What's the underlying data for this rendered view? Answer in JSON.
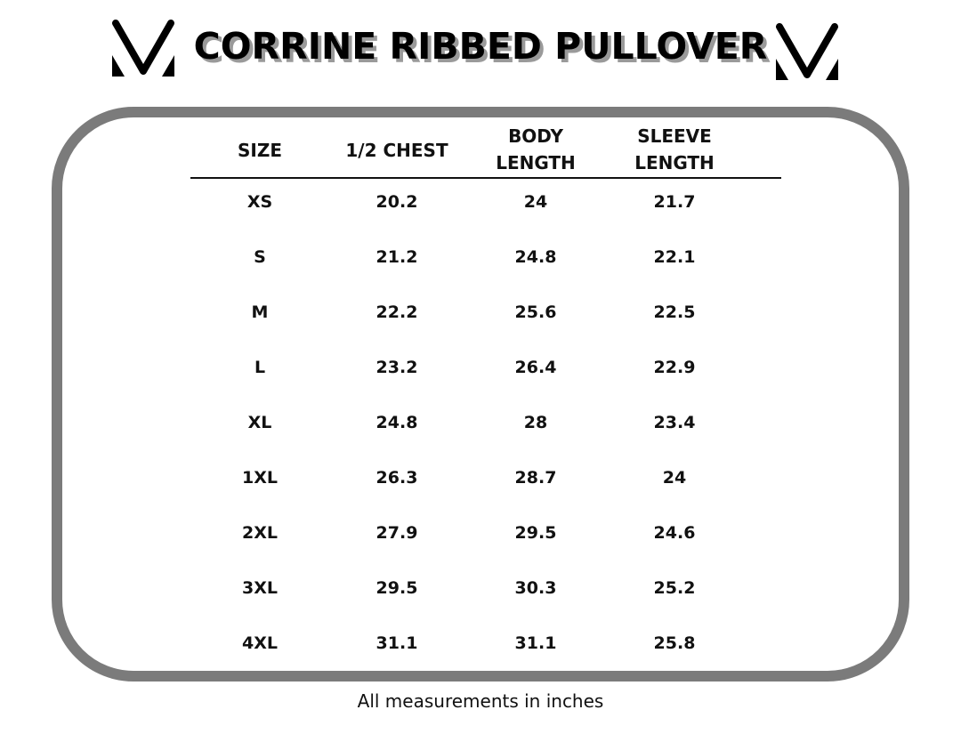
{
  "title": "CORRINE RIBBED PULLOVER",
  "logo": {
    "icon": "v-triangles-logo"
  },
  "table": {
    "headers": [
      "SIZE",
      "1/2 CHEST",
      "BODY\nLENGTH",
      "SLEEVE\nLENGTH"
    ],
    "rows": [
      [
        "XS",
        "20.2",
        "24",
        "21.7"
      ],
      [
        "S",
        "21.2",
        "24.8",
        "22.1"
      ],
      [
        "M",
        "22.2",
        "25.6",
        "22.5"
      ],
      [
        "L",
        "23.2",
        "26.4",
        "22.9"
      ],
      [
        "XL",
        "24.8",
        "28",
        "23.4"
      ],
      [
        "1XL",
        "26.3",
        "28.7",
        "24"
      ],
      [
        "2XL",
        "27.9",
        "29.5",
        "24.6"
      ],
      [
        "3XL",
        "29.5",
        "30.3",
        "25.2"
      ],
      [
        "4XL",
        "31.1",
        "31.1",
        "25.8"
      ]
    ]
  },
  "footer": "All measurements in inches",
  "colors": {
    "frame": "#7b7b7b",
    "title_shadow": "#9a9a9a"
  }
}
